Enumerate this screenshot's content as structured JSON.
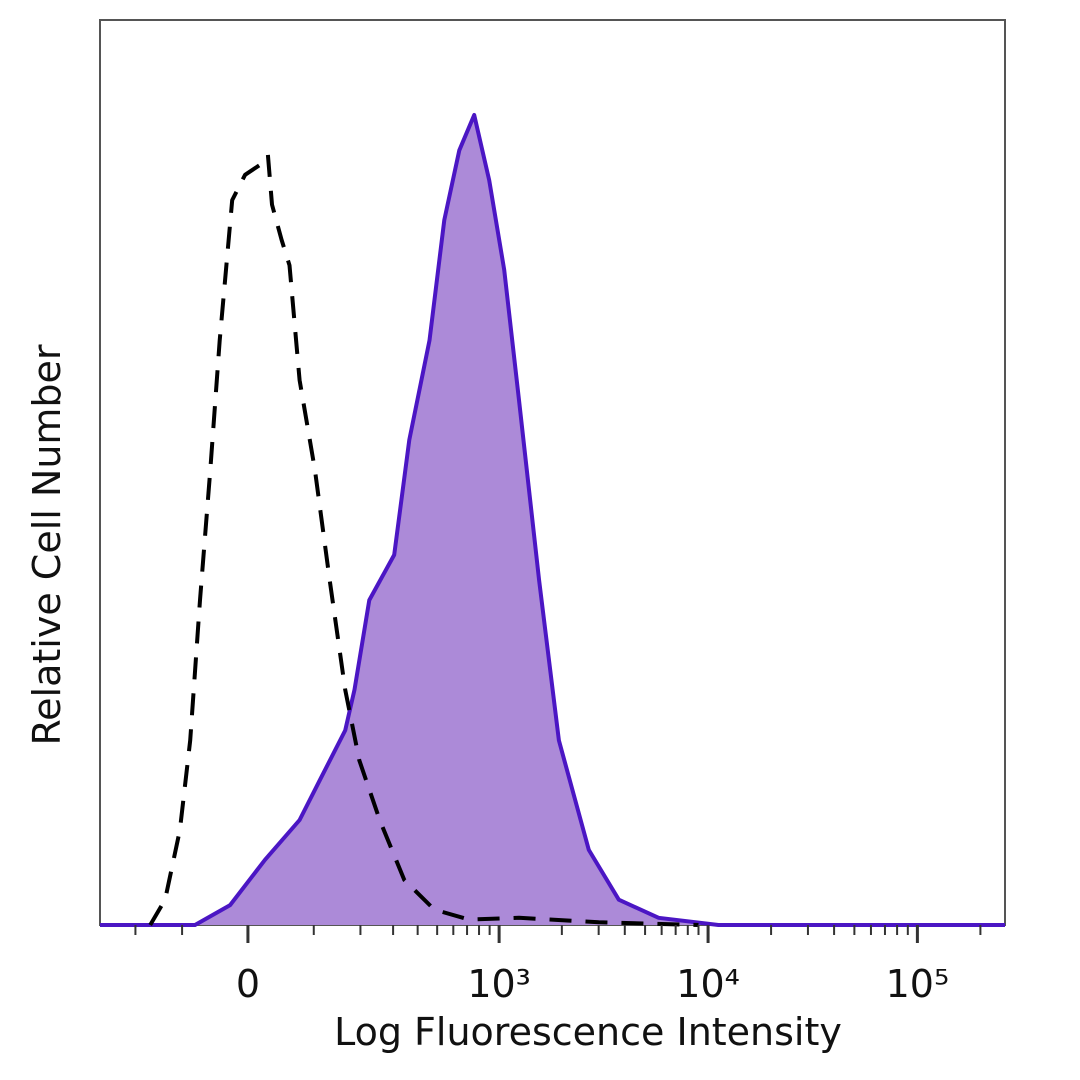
{
  "chart_data": {
    "type": "histogram_overlay",
    "x_label": "Log Fluorescence Intensity",
    "y_label": "Relative Cell Number",
    "xscale": {
      "type": "asinh",
      "linear_width": 126.7
    },
    "xlim": [
      -310,
      262144
    ],
    "ylim": [
      0,
      100
    ],
    "xticks": [
      0,
      {
        "value": 1000,
        "label": "10³"
      },
      {
        "value": 10000,
        "label": "10⁴"
      },
      {
        "value": 100000,
        "label": "10⁵"
      }
    ],
    "xminor_ticks": [
      -200,
      -100,
      100,
      200,
      300,
      400,
      500,
      600,
      700,
      800,
      900,
      2000,
      3000,
      4000,
      5000,
      6000,
      7000,
      8000,
      9000,
      20000,
      30000,
      40000,
      50000,
      60000,
      70000,
      80000,
      90000,
      200000
    ],
    "series": [
      {
        "color": "#4b16c4",
        "fill": "#ac8ad8",
        "dashed": false,
        "x": [
          -310,
          -78,
          -25,
          24,
          76,
          111,
          163,
          185,
          224,
          304,
          363,
          458,
          542,
          642,
          758,
          896,
          1058,
          1247,
          1556,
          1937,
          2692,
          3744,
          5800,
          11200,
          262144
        ],
        "values": [
          0,
          0,
          2.2,
          7.2,
          11.6,
          16.0,
          21.5,
          26.0,
          35.9,
          40.9,
          53.6,
          64.6,
          77.9,
          85.6,
          89.5,
          82.3,
          72.4,
          58.0,
          38.1,
          20.4,
          8.3,
          2.8,
          0.8,
          0,
          0
        ]
      },
      {
        "color": "#000000",
        "fill": "none",
        "dashed": true,
        "x": [
          -164,
          -132,
          -104,
          -86,
          -70,
          -54,
          -40,
          -22,
          -4,
          17,
          28,
          34,
          48,
          60,
          76,
          102,
          130,
          163,
          197,
          255,
          342,
          484,
          716,
          1247,
          3000,
          9000
        ],
        "values": [
          0,
          2.8,
          10.5,
          20.4,
          35.9,
          50.3,
          64.6,
          80.1,
          82.9,
          84.0,
          85.1,
          79.6,
          75.7,
          72.9,
          60.2,
          50.3,
          38.1,
          26.0,
          18.2,
          11.6,
          5.0,
          1.7,
          0.6,
          0.8,
          0.3,
          0
        ]
      }
    ]
  }
}
